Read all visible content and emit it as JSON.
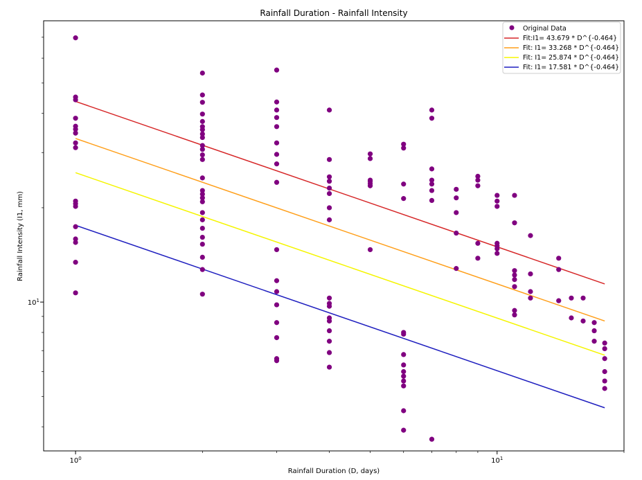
{
  "chart_data": {
    "type": "scatter",
    "title": "Rainfall Duration - Rainfall Intensity",
    "xlabel": "Rainfall Duration (D, days)",
    "ylabel": "Rainfall Intensity (I1, mm)",
    "x_scale": "log",
    "y_scale": "log",
    "xlim": [
      0.84,
      20.0
    ],
    "ylim": [
      3.35,
      79.0
    ],
    "x_ticks": [
      1,
      10
    ],
    "x_tick_labels": [
      "10^0",
      "10^1"
    ],
    "y_ticks": [
      10
    ],
    "y_tick_labels": [
      "10^1"
    ],
    "grid": false,
    "legend_position": "top-right",
    "scatter": {
      "name": "Original Data",
      "color": "#800080",
      "points": [
        [
          1,
          69.7
        ],
        [
          1,
          45.1
        ],
        [
          1,
          44.2
        ],
        [
          1,
          38.6
        ],
        [
          1,
          36.4
        ],
        [
          1,
          35.6
        ],
        [
          1,
          34.6
        ],
        [
          1,
          32.2
        ],
        [
          1,
          31.1
        ],
        [
          1,
          21.0
        ],
        [
          1,
          20.6
        ],
        [
          1,
          20.2
        ],
        [
          1,
          17.4
        ],
        [
          1,
          15.9
        ],
        [
          1,
          15.5
        ],
        [
          1,
          13.4
        ],
        [
          1,
          10.7
        ],
        [
          2,
          53.8
        ],
        [
          2,
          45.8
        ],
        [
          2,
          43.4
        ],
        [
          2,
          39.8
        ],
        [
          2,
          37.7
        ],
        [
          2,
          36.3
        ],
        [
          2,
          35.5
        ],
        [
          2,
          34.4
        ],
        [
          2,
          33.5
        ],
        [
          2,
          31.6
        ],
        [
          2,
          30.7
        ],
        [
          2,
          29.5
        ],
        [
          2,
          28.5
        ],
        [
          2,
          24.9
        ],
        [
          2,
          22.7
        ],
        [
          2,
          22.1
        ],
        [
          2,
          21.5
        ],
        [
          2,
          20.9
        ],
        [
          2,
          19.3
        ],
        [
          2,
          18.3
        ],
        [
          2,
          17.2
        ],
        [
          2,
          16.1
        ],
        [
          2,
          15.3
        ],
        [
          2,
          13.9
        ],
        [
          2,
          12.7
        ],
        [
          2,
          10.6
        ],
        [
          3,
          55.0
        ],
        [
          3,
          43.5
        ],
        [
          3,
          41.0
        ],
        [
          3,
          38.8
        ],
        [
          3,
          36.3
        ],
        [
          3,
          32.2
        ],
        [
          3,
          29.6
        ],
        [
          3,
          27.6
        ],
        [
          3,
          24.1
        ],
        [
          3,
          14.7
        ],
        [
          3,
          11.7
        ],
        [
          3,
          10.8
        ],
        [
          3,
          9.8
        ],
        [
          3,
          8.6
        ],
        [
          3,
          7.7
        ],
        [
          3,
          6.6
        ],
        [
          3,
          6.5
        ],
        [
          4,
          41.0
        ],
        [
          4,
          28.5
        ],
        [
          4,
          25.1
        ],
        [
          4,
          24.3
        ],
        [
          4,
          23.1
        ],
        [
          4,
          22.2
        ],
        [
          4,
          20.0
        ],
        [
          4,
          18.3
        ],
        [
          4,
          10.3
        ],
        [
          4,
          9.9
        ],
        [
          4,
          9.7
        ],
        [
          4,
          8.9
        ],
        [
          4,
          8.7
        ],
        [
          4,
          8.1
        ],
        [
          4,
          7.5
        ],
        [
          4,
          6.9
        ],
        [
          4,
          6.2
        ],
        [
          5,
          29.7
        ],
        [
          5,
          28.7
        ],
        [
          5,
          24.5
        ],
        [
          5,
          24.3
        ],
        [
          5,
          23.9
        ],
        [
          5,
          23.5
        ],
        [
          5,
          14.7
        ],
        [
          6,
          31.9
        ],
        [
          6,
          31.0
        ],
        [
          6,
          23.8
        ],
        [
          6,
          21.4
        ],
        [
          6,
          8.0
        ],
        [
          6,
          7.9
        ],
        [
          6,
          6.8
        ],
        [
          6,
          6.3
        ],
        [
          6,
          6.0
        ],
        [
          6,
          5.8
        ],
        [
          6,
          5.6
        ],
        [
          6,
          5.4
        ],
        [
          6,
          4.5
        ],
        [
          6,
          3.9
        ],
        [
          7,
          41.0
        ],
        [
          7,
          38.6
        ],
        [
          7,
          26.6
        ],
        [
          7,
          24.5
        ],
        [
          7,
          23.8
        ],
        [
          7,
          22.7
        ],
        [
          7,
          21.1
        ],
        [
          7,
          3.65
        ],
        [
          8,
          22.9
        ],
        [
          8,
          21.5
        ],
        [
          8,
          19.3
        ],
        [
          8,
          16.6
        ],
        [
          8,
          12.8
        ],
        [
          9,
          25.2
        ],
        [
          9,
          24.5
        ],
        [
          9,
          23.5
        ],
        [
          9,
          15.4
        ],
        [
          9,
          13.8
        ],
        [
          10,
          21.9
        ],
        [
          10,
          21.0
        ],
        [
          10,
          20.2
        ],
        [
          10,
          15.4
        ],
        [
          10,
          15.1
        ],
        [
          10,
          14.8
        ],
        [
          10,
          14.3
        ],
        [
          11,
          21.9
        ],
        [
          11,
          17.9
        ],
        [
          11,
          12.6
        ],
        [
          11,
          12.2
        ],
        [
          11,
          11.8
        ],
        [
          11,
          11.2
        ],
        [
          11,
          9.4
        ],
        [
          11,
          9.1
        ],
        [
          12,
          16.3
        ],
        [
          12,
          12.3
        ],
        [
          12,
          10.8
        ],
        [
          12,
          10.3
        ],
        [
          14,
          10.1
        ],
        [
          14,
          12.7
        ],
        [
          14,
          13.8
        ],
        [
          15,
          10.3
        ],
        [
          15,
          8.9
        ],
        [
          16,
          10.3
        ],
        [
          16,
          8.7
        ],
        [
          17,
          8.6
        ],
        [
          17,
          8.1
        ],
        [
          17,
          7.5
        ],
        [
          18,
          7.4
        ],
        [
          18,
          6.6
        ],
        [
          18,
          7.1
        ],
        [
          18,
          6.0
        ],
        [
          18,
          5.6
        ],
        [
          18,
          5.3
        ]
      ]
    },
    "fit_lines": [
      {
        "name": "Fit:I1= 43.679 * D^{-0.464}",
        "a": 43.679,
        "b": -0.464,
        "color": "#d62728"
      },
      {
        "name": "Fit: I1= 33.268 * D^{-0.464}",
        "a": 33.268,
        "b": -0.464,
        "color": "#ff9f1a"
      },
      {
        "name": "Fit: I1= 25.874 * D^{-0.464}",
        "a": 25.874,
        "b": -0.464,
        "color": "#f5f500"
      },
      {
        "name": "Fit: I1= 17.581 * D^{-0.464}",
        "a": 17.581,
        "b": -0.464,
        "color": "#1f1fbf"
      }
    ],
    "fit_x_range": [
      1,
      18
    ]
  }
}
